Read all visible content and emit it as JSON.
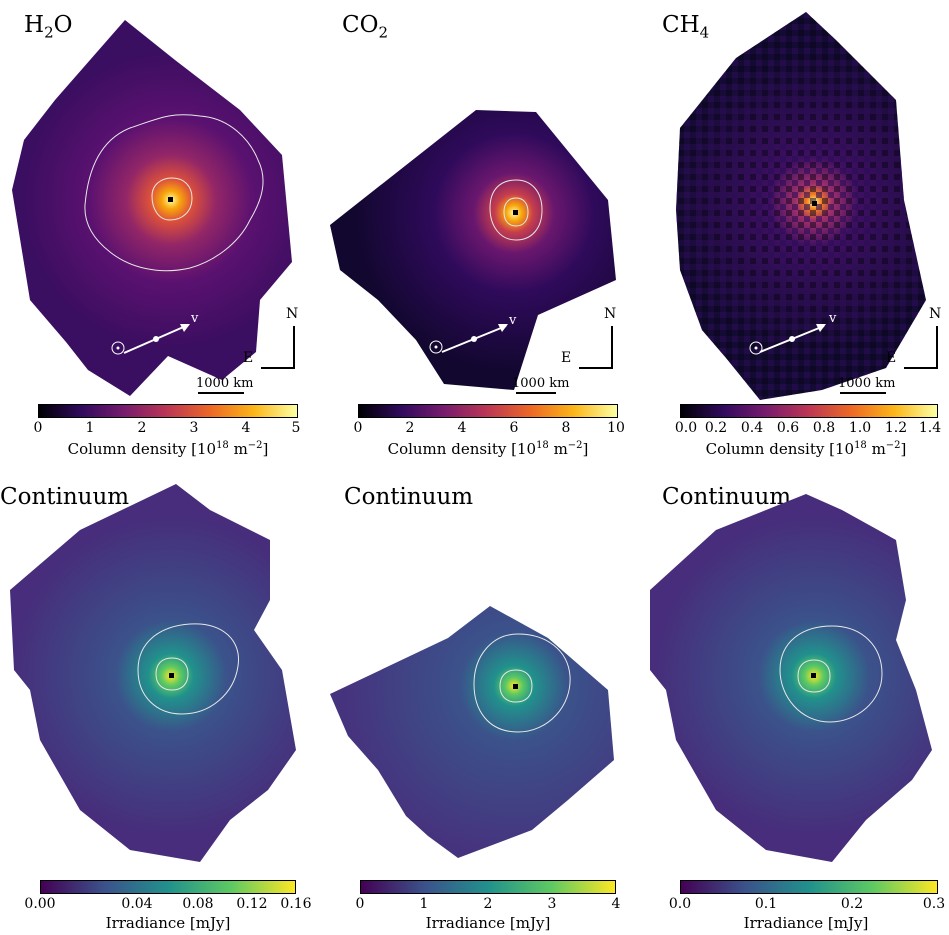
{
  "panels": [
    {
      "title_main": "H",
      "title_sub": "2",
      "title_rest": "O",
      "cmap": "inferno",
      "ticks": [
        "0",
        "1",
        "2",
        "3",
        "4",
        "5"
      ],
      "cb_label": "Column density [10",
      "cb_exp": "18",
      "cb_unit": " m",
      "cb_unit_exp": "−2",
      "cb_close": "]",
      "velocity_label": "v",
      "north_label": "N",
      "east_label": "E",
      "scale_label": "1000 km"
    },
    {
      "title_main": "CO",
      "title_sub": "2",
      "title_rest": "",
      "cmap": "inferno",
      "ticks": [
        "0",
        "2",
        "4",
        "6",
        "8",
        "10"
      ],
      "cb_label": "Column density [10",
      "cb_exp": "18",
      "cb_unit": " m",
      "cb_unit_exp": "−2",
      "cb_close": "]",
      "velocity_label": "v",
      "north_label": "N",
      "east_label": "E",
      "scale_label": "1000 km"
    },
    {
      "title_main": "CH",
      "title_sub": "4",
      "title_rest": "",
      "cmap": "inferno",
      "ticks": [
        "0.0",
        "0.2",
        "0.4",
        "0.6",
        "0.8",
        "1.0",
        "1.2",
        "1.4"
      ],
      "cb_label": "Column density [10",
      "cb_exp": "18",
      "cb_unit": " m",
      "cb_unit_exp": "−2",
      "cb_close": "]",
      "velocity_label": "v",
      "north_label": "N",
      "east_label": "E",
      "scale_label": "1000 km"
    },
    {
      "title_main": "Continuum",
      "title_sub": "",
      "title_rest": "",
      "cmap": "viridis",
      "ticks": [
        "0.00",
        "0.04",
        "0.08",
        "0.12",
        "0.16"
      ],
      "cb_label": "Irradiance [mJy]",
      "cb_exp": "",
      "cb_unit": "",
      "cb_unit_exp": "",
      "cb_close": ""
    },
    {
      "title_main": "Continuum",
      "title_sub": "",
      "title_rest": "",
      "cmap": "viridis",
      "ticks": [
        "0",
        "1",
        "2",
        "3",
        "4"
      ],
      "cb_label": "Irradiance [mJy]",
      "cb_exp": "",
      "cb_unit": "",
      "cb_unit_exp": "",
      "cb_close": ""
    },
    {
      "title_main": "Continuum",
      "title_sub": "",
      "title_rest": "",
      "cmap": "viridis",
      "ticks": [
        "0.0",
        "0.1",
        "0.2",
        "0.3"
      ],
      "cb_label": "Irradiance [mJy]",
      "cb_exp": "",
      "cb_unit": "",
      "cb_unit_exp": "",
      "cb_close": ""
    }
  ],
  "colors": {
    "inferno_dark": "#1b0c41",
    "inferno_mid": "#4a0c6b",
    "viridis_bg": "#3b528b",
    "contour": "#e8e8e8"
  }
}
